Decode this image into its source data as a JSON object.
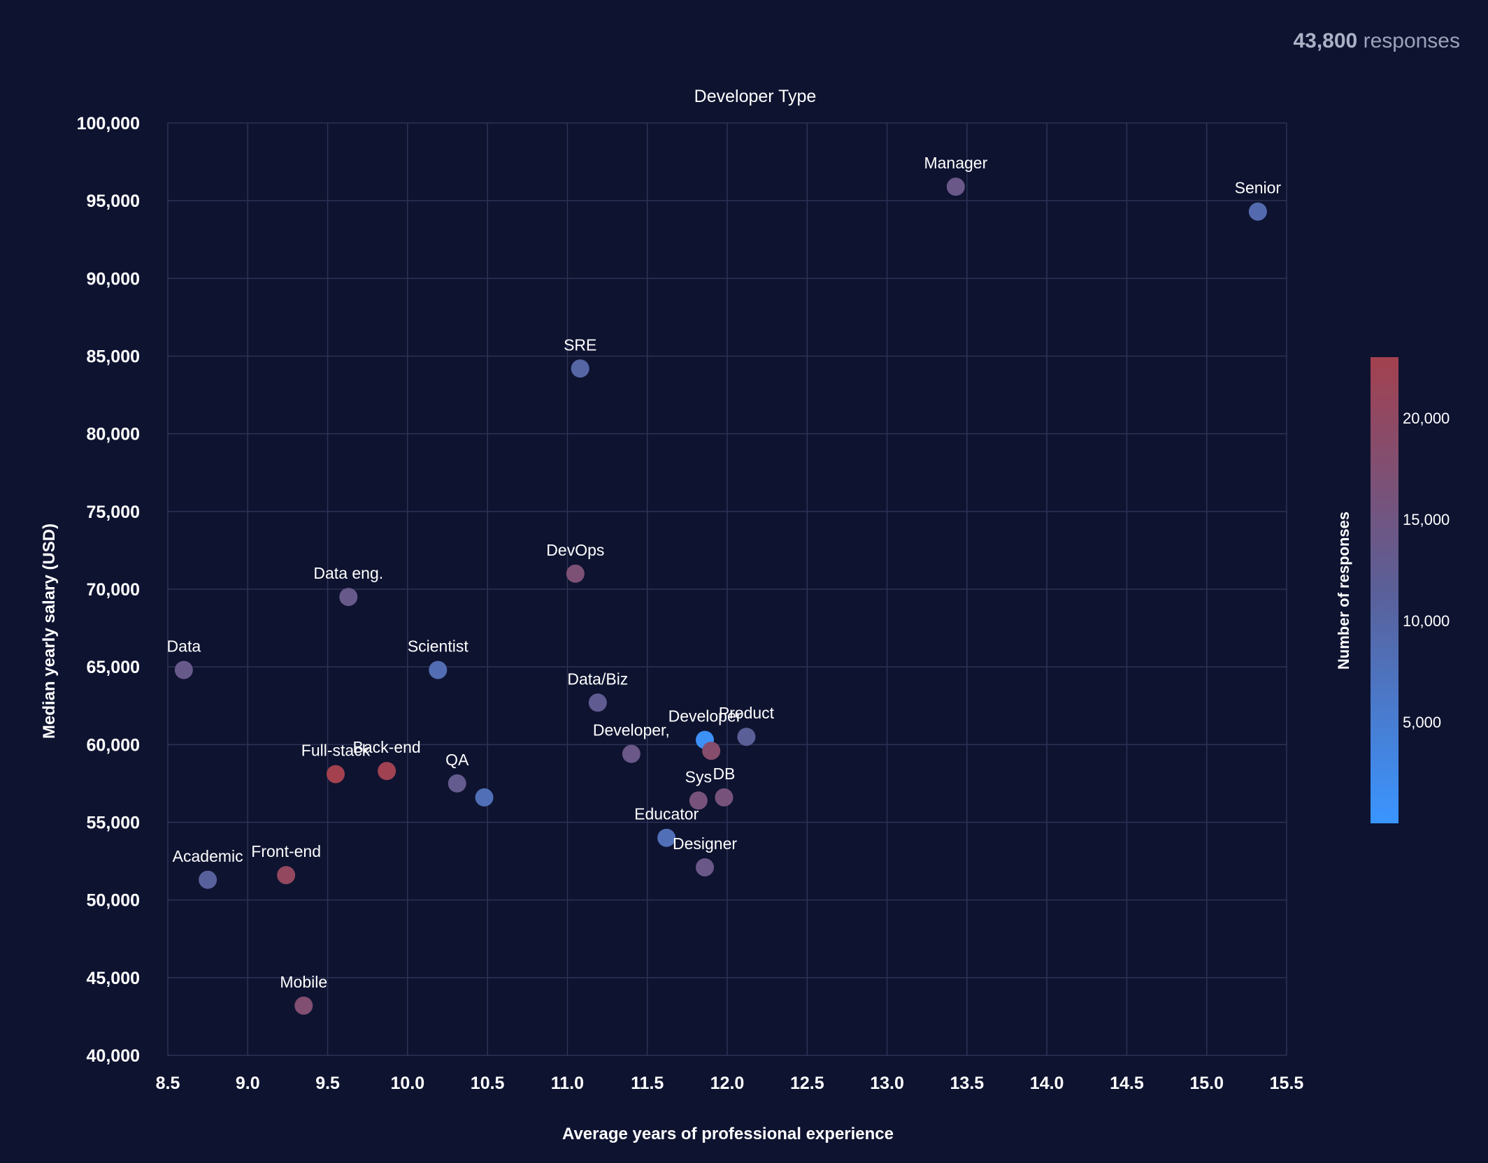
{
  "header": {
    "responses_count": "43,800",
    "responses_label": "responses"
  },
  "chart_data": {
    "type": "scatter",
    "title": "Developer Type",
    "xlabel": "Average years of professional experience",
    "ylabel": "Median yearly salary (USD)",
    "xlim": [
      8.5,
      15.5
    ],
    "ylim": [
      40000,
      100000
    ],
    "x_ticks": [
      8.5,
      9.0,
      9.5,
      10.0,
      10.5,
      11.0,
      11.5,
      12.0,
      12.5,
      13.0,
      13.5,
      14.0,
      14.5,
      15.0,
      15.5
    ],
    "x_tick_labels": [
      "8.5",
      "9.0",
      "9.5",
      "10.0",
      "10.5",
      "11.0",
      "11.5",
      "12.0",
      "12.5",
      "13.0",
      "13.5",
      "14.0",
      "14.5",
      "15.0",
      "15.5"
    ],
    "y_ticks": [
      40000,
      45000,
      50000,
      55000,
      60000,
      65000,
      70000,
      75000,
      80000,
      85000,
      90000,
      95000,
      100000
    ],
    "y_tick_labels": [
      "40,000",
      "45,000",
      "50,000",
      "55,000",
      "60,000",
      "65,000",
      "70,000",
      "75,000",
      "80,000",
      "85,000",
      "90,000",
      "95,000",
      "100,000"
    ],
    "grid": true,
    "colorbar": {
      "label": "Number of responses",
      "min": 0,
      "max": 23000,
      "ticks": [
        5000,
        10000,
        15000,
        20000
      ],
      "tick_labels": [
        "5,000",
        "10,000",
        "15,000",
        "20,000"
      ],
      "color_low": "#3a95ff",
      "color_mid": "#5a5f98",
      "color_high": "#a3414f"
    },
    "points": [
      {
        "label": "Manager",
        "x": 13.43,
        "y": 95900,
        "responses": 14000
      },
      {
        "label": "Senior",
        "x": 15.32,
        "y": 94300,
        "responses": 9000
      },
      {
        "label": "SRE",
        "x": 11.08,
        "y": 84200,
        "responses": 10000
      },
      {
        "label": "DevOps",
        "x": 11.05,
        "y": 71000,
        "responses": 17000
      },
      {
        "label": "Data eng.",
        "x": 9.63,
        "y": 69500,
        "responses": 13500
      },
      {
        "label": "Data",
        "x": 8.6,
        "y": 64800,
        "responses": 13500
      },
      {
        "label": "Scientist",
        "x": 10.19,
        "y": 64800,
        "responses": 8500
      },
      {
        "label": "Data/Biz",
        "x": 11.19,
        "y": 62700,
        "responses": 12500
      },
      {
        "label": "Product",
        "x": 12.12,
        "y": 60500,
        "responses": 11500
      },
      {
        "label": "Developer",
        "x": 11.86,
        "y": 60300,
        "responses": 1000
      },
      {
        "label": "",
        "x": 11.9,
        "y": 59600,
        "responses": 18500
      },
      {
        "label": "Developer,",
        "x": 11.4,
        "y": 59400,
        "responses": 14000
      },
      {
        "label": "Back-end",
        "x": 9.87,
        "y": 58300,
        "responses": 22500
      },
      {
        "label": "Full-stack",
        "x": 9.55,
        "y": 58100,
        "responses": 23000
      },
      {
        "label": "QA",
        "x": 10.31,
        "y": 57500,
        "responses": 13000
      },
      {
        "label": "",
        "x": 10.48,
        "y": 56600,
        "responses": 8000
      },
      {
        "label": "DB",
        "x": 11.98,
        "y": 56600,
        "responses": 16000
      },
      {
        "label": "Sys",
        "x": 11.82,
        "y": 56400,
        "responses": 16000
      },
      {
        "label": "Educator",
        "x": 11.62,
        "y": 54000,
        "responses": 8000
      },
      {
        "label": "Designer",
        "x": 11.86,
        "y": 52100,
        "responses": 14000
      },
      {
        "label": "Front-end",
        "x": 9.24,
        "y": 51600,
        "responses": 20500
      },
      {
        "label": "Academic",
        "x": 8.75,
        "y": 51300,
        "responses": 11000
      },
      {
        "label": "Mobile",
        "x": 9.35,
        "y": 43200,
        "responses": 17500
      }
    ]
  }
}
